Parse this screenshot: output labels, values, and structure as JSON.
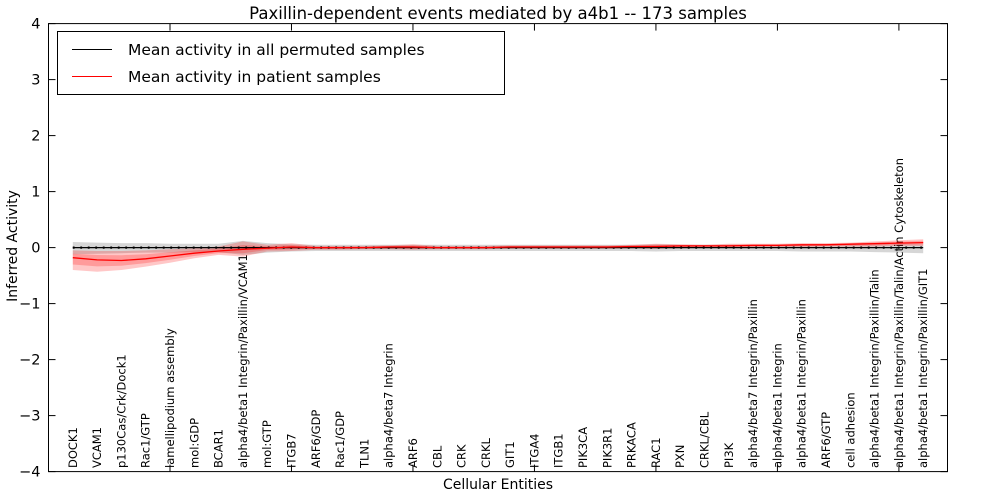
{
  "title": "Paxillin-dependent events mediated by a4b1 -- 173 samples",
  "chart_data": {
    "type": "line",
    "title": "Paxillin-dependent events mediated by a4b1 -- 173 samples",
    "xlabel": "Cellular Entities",
    "ylabel": "Inferred Activity",
    "ylim": [
      -4,
      4
    ],
    "yticks": [
      4,
      3,
      2,
      1,
      0,
      -1,
      -2,
      -3,
      -4
    ],
    "xtick_positions": [
      5,
      10,
      15,
      20,
      25,
      30,
      35
    ],
    "grid": false,
    "legend_position": "upper left",
    "categories": [
      "DOCK1",
      "VCAM1",
      "p130Cas/Crk/Dock1",
      "Rac1/GTP",
      "lamellipodium assembly",
      "mol:GDP",
      "BCAR1",
      "alpha4/beta1 Integrin/Paxillin/VCAM1",
      "mol:GTP",
      "ITGB7",
      "ARF6/GDP",
      "Rac1/GDP",
      "TLN1",
      "alpha4/beta7 Integrin",
      "ARF6",
      "CBL",
      "CRK",
      "CRKL",
      "GIT1",
      "ITGA4",
      "ITGB1",
      "PIK3CA",
      "PIK3R1",
      "PRKACA",
      "RAC1",
      "PXN",
      "CRKL/CBL",
      "PI3K",
      "alpha4/beta7 Integrin/Paxillin",
      "alpha4/beta1 Integrin",
      "alpha4/beta1 Integrin/Paxillin",
      "ARF6/GTP",
      "cell adhesion",
      "alpha4/beta1 Integrin/Paxillin/Talin",
      "alpha4/beta1 Integrin/Paxillin/Talin/Actin Cytoskeleton",
      "alpha4/beta1 Integrin/Paxillin/GIT1"
    ],
    "series": [
      {
        "name": "Mean activity in all permuted samples",
        "color": "#000000",
        "line_style": "solid with dot markers on zero line",
        "band_color": "rgba(0,0,0,0.16)",
        "values": [
          0,
          0,
          0,
          0,
          0,
          0,
          0,
          0,
          0,
          0,
          0,
          0,
          0,
          0,
          0,
          0,
          0,
          0,
          0,
          0,
          0,
          0,
          0,
          0,
          0,
          0,
          0,
          0,
          0,
          0,
          0,
          0,
          0,
          0,
          0,
          0
        ],
        "band_upper": [
          0.1,
          0.09,
          0.08,
          0.08,
          0.07,
          0.07,
          0.07,
          0.12,
          0.08,
          0.06,
          0.05,
          0.05,
          0.05,
          0.05,
          0.05,
          0.05,
          0.05,
          0.05,
          0.05,
          0.05,
          0.05,
          0.05,
          0.05,
          0.05,
          0.06,
          0.05,
          0.05,
          0.05,
          0.05,
          0.05,
          0.05,
          0.05,
          0.05,
          0.05,
          0.06,
          0.06
        ],
        "band_lower": [
          -0.12,
          -0.11,
          -0.1,
          -0.09,
          -0.09,
          -0.08,
          -0.08,
          -0.13,
          -0.09,
          -0.07,
          -0.06,
          -0.06,
          -0.06,
          -0.06,
          -0.06,
          -0.06,
          -0.06,
          -0.06,
          -0.06,
          -0.06,
          -0.06,
          -0.06,
          -0.06,
          -0.06,
          -0.07,
          -0.06,
          -0.06,
          -0.06,
          -0.06,
          -0.06,
          -0.07,
          -0.07,
          -0.07,
          -0.08,
          -0.09,
          -0.1
        ]
      },
      {
        "name": "Mean activity in patient samples",
        "color": "#ff0000",
        "line_style": "solid",
        "band_color": "rgba(255,0,0,0.22)",
        "values": [
          -0.18,
          -0.22,
          -0.23,
          -0.2,
          -0.15,
          -0.1,
          -0.06,
          -0.03,
          -0.01,
          0.01,
          0.0,
          0.0,
          0.0,
          0.01,
          0.01,
          0.0,
          0.0,
          0.0,
          0.01,
          0.01,
          0.01,
          0.01,
          0.01,
          0.02,
          0.02,
          0.03,
          0.03,
          0.03,
          0.04,
          0.04,
          0.05,
          0.05,
          0.06,
          0.07,
          0.08,
          0.09
        ],
        "band_upper": [
          -0.05,
          -0.06,
          -0.06,
          -0.05,
          -0.03,
          -0.01,
          0.02,
          0.11,
          0.05,
          0.08,
          0.03,
          0.03,
          0.03,
          0.04,
          0.06,
          0.03,
          0.03,
          0.03,
          0.04,
          0.04,
          0.04,
          0.04,
          0.04,
          0.05,
          0.07,
          0.06,
          0.05,
          0.07,
          0.07,
          0.07,
          0.08,
          0.08,
          0.09,
          0.11,
          0.13,
          0.15
        ],
        "band_lower": [
          -0.4,
          -0.43,
          -0.4,
          -0.34,
          -0.27,
          -0.19,
          -0.13,
          -0.16,
          -0.07,
          -0.06,
          -0.04,
          -0.04,
          -0.03,
          -0.03,
          -0.04,
          -0.03,
          -0.03,
          -0.03,
          -0.02,
          -0.02,
          -0.02,
          -0.02,
          -0.02,
          -0.01,
          -0.02,
          -0.01,
          0.0,
          0.0,
          0.0,
          0.01,
          0.01,
          0.02,
          0.02,
          0.02,
          0.03,
          0.03
        ]
      }
    ]
  }
}
